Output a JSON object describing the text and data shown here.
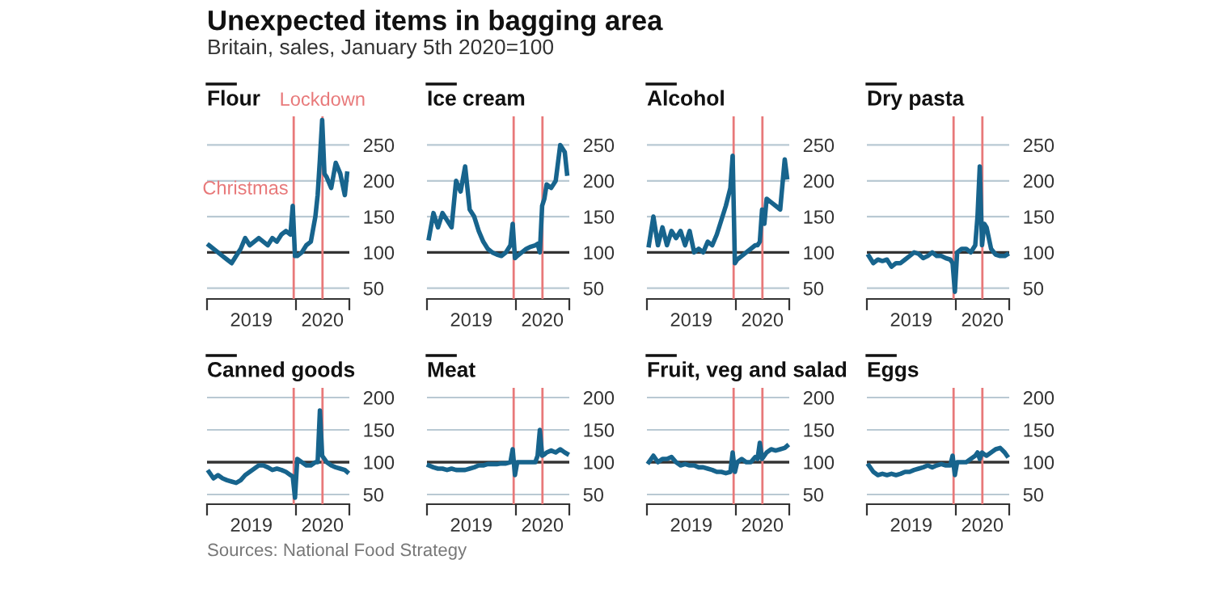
{
  "chart_data": [
    {
      "type": "other",
      "title": "Unexpected items in bagging area",
      "subtitle": "Britain, sales, January 5th 2020=100",
      "annotations": [
        "Sources: National Food Strategy"
      ]
    },
    {
      "type": "line",
      "title": "Flour",
      "x": [
        "2019-04-07",
        "2019-04-21",
        "2019-05-05",
        "2019-05-19",
        "2019-06-02",
        "2019-06-16",
        "2019-06-30",
        "2019-07-14",
        "2019-07-28",
        "2019-08-11",
        "2019-08-25",
        "2019-09-08",
        "2019-09-22",
        "2019-10-06",
        "2019-10-20",
        "2019-11-03",
        "2019-11-17",
        "2019-12-01",
        "2019-12-15",
        "2019-12-22",
        "2019-12-29",
        "2020-01-05",
        "2020-01-19",
        "2020-02-02",
        "2020-02-16",
        "2020-03-01",
        "2020-03-08",
        "2020-03-15",
        "2020-03-22",
        "2020-03-29",
        "2020-04-05",
        "2020-04-19",
        "2020-05-03",
        "2020-05-17",
        "2020-05-31",
        "2020-06-07"
      ],
      "series": [
        {
          "color": "#17648d",
          "values": [
            110,
            105,
            100,
            95,
            90,
            85,
            95,
            105,
            120,
            110,
            115,
            120,
            115,
            110,
            120,
            115,
            125,
            130,
            125,
            165,
            95,
            95,
            100,
            110,
            115,
            150,
            180,
            230,
            285,
            210,
            205,
            190,
            225,
            210,
            180,
            210
          ]
        }
      ],
      "ylim": [
        35,
        290
      ],
      "yticks": [
        50,
        100,
        150,
        200,
        250
      ],
      "xlim": [
        "2019-04-01",
        "2020-06-14"
      ],
      "xticks": [
        {
          "value": "2019-04-01",
          "label": null
        },
        {
          "value": "2019-08-16",
          "label": "2019"
        },
        {
          "value": "2020-01-01",
          "label": null
        },
        {
          "value": "2020-03-23",
          "label": "2020"
        },
        {
          "value": "2020-06-14",
          "label": null
        }
      ],
      "grid": "y",
      "ref_lines": [
        {
          "axis": "y",
          "value": 100,
          "color": "#333333"
        },
        {
          "axis": "x",
          "value": "2019-12-25",
          "label": "Christmas",
          "color": "#e8797a"
        },
        {
          "axis": "x",
          "value": "2020-03-23",
          "label": "Lockdown",
          "color": "#e8797a"
        }
      ]
    },
    {
      "type": "line",
      "title": "Ice cream",
      "x": [
        "2019-04-07",
        "2019-04-21",
        "2019-05-05",
        "2019-05-19",
        "2019-06-02",
        "2019-06-16",
        "2019-06-30",
        "2019-07-14",
        "2019-07-28",
        "2019-08-11",
        "2019-08-25",
        "2019-09-08",
        "2019-09-22",
        "2019-10-06",
        "2019-10-20",
        "2019-11-03",
        "2019-11-17",
        "2019-12-01",
        "2019-12-15",
        "2019-12-22",
        "2019-12-29",
        "2020-01-05",
        "2020-01-19",
        "2020-02-02",
        "2020-02-16",
        "2020-03-01",
        "2020-03-08",
        "2020-03-15",
        "2020-03-22",
        "2020-03-29",
        "2020-04-05",
        "2020-04-19",
        "2020-05-03",
        "2020-05-17",
        "2020-05-31",
        "2020-06-07"
      ],
      "series": [
        {
          "color": "#17648d",
          "values": [
            120,
            155,
            135,
            155,
            145,
            135,
            200,
            185,
            220,
            160,
            150,
            130,
            115,
            105,
            100,
            97,
            95,
            100,
            110,
            140,
            92,
            95,
            100,
            105,
            108,
            110,
            112,
            100,
            165,
            175,
            195,
            190,
            200,
            250,
            240,
            210
          ]
        }
      ],
      "ylim": [
        35,
        290
      ],
      "yticks": [
        50,
        100,
        150,
        200,
        250
      ],
      "xlim": [
        "2019-04-01",
        "2020-06-14"
      ],
      "xticks": [
        {
          "value": "2019-04-01",
          "label": null
        },
        {
          "value": "2019-08-16",
          "label": "2019"
        },
        {
          "value": "2020-01-01",
          "label": null
        },
        {
          "value": "2020-03-23",
          "label": "2020"
        },
        {
          "value": "2020-06-14",
          "label": null
        }
      ],
      "grid": "y",
      "ref_lines": [
        {
          "axis": "y",
          "value": 100,
          "color": "#333333"
        },
        {
          "axis": "x",
          "value": "2019-12-25",
          "color": "#e8797a"
        },
        {
          "axis": "x",
          "value": "2020-03-23",
          "color": "#e8797a"
        }
      ]
    },
    {
      "type": "line",
      "title": "Alcohol",
      "x": [
        "2019-04-07",
        "2019-04-21",
        "2019-05-05",
        "2019-05-19",
        "2019-06-02",
        "2019-06-16",
        "2019-06-30",
        "2019-07-14",
        "2019-07-28",
        "2019-08-11",
        "2019-08-25",
        "2019-09-08",
        "2019-09-22",
        "2019-10-06",
        "2019-10-20",
        "2019-11-03",
        "2019-11-17",
        "2019-12-01",
        "2019-12-15",
        "2019-12-22",
        "2019-12-29",
        "2020-01-05",
        "2020-01-19",
        "2020-02-02",
        "2020-02-16",
        "2020-03-01",
        "2020-03-08",
        "2020-03-15",
        "2020-03-22",
        "2020-03-29",
        "2020-04-05",
        "2020-04-19",
        "2020-05-03",
        "2020-05-17",
        "2020-05-31",
        "2020-06-07"
      ],
      "series": [
        {
          "color": "#17648d",
          "values": [
            110,
            150,
            110,
            135,
            110,
            130,
            120,
            130,
            110,
            130,
            100,
            105,
            100,
            115,
            110,
            125,
            145,
            165,
            190,
            235,
            85,
            90,
            95,
            100,
            105,
            110,
            110,
            115,
            160,
            140,
            175,
            170,
            165,
            160,
            230,
            205
          ]
        }
      ],
      "ylim": [
        35,
        290
      ],
      "yticks": [
        50,
        100,
        150,
        200,
        250
      ],
      "xlim": [
        "2019-04-01",
        "2020-06-14"
      ],
      "xticks": [
        {
          "value": "2019-04-01",
          "label": null
        },
        {
          "value": "2019-08-16",
          "label": "2019"
        },
        {
          "value": "2020-01-01",
          "label": null
        },
        {
          "value": "2020-03-23",
          "label": "2020"
        },
        {
          "value": "2020-06-14",
          "label": null
        }
      ],
      "grid": "y",
      "ref_lines": [
        {
          "axis": "y",
          "value": 100,
          "color": "#333333"
        },
        {
          "axis": "x",
          "value": "2019-12-25",
          "color": "#e8797a"
        },
        {
          "axis": "x",
          "value": "2020-03-23",
          "color": "#e8797a"
        }
      ]
    },
    {
      "type": "line",
      "title": "Dry pasta",
      "x": [
        "2019-04-07",
        "2019-04-21",
        "2019-05-05",
        "2019-05-19",
        "2019-06-02",
        "2019-06-16",
        "2019-06-30",
        "2019-07-14",
        "2019-07-28",
        "2019-08-11",
        "2019-08-25",
        "2019-09-08",
        "2019-09-22",
        "2019-10-06",
        "2019-10-20",
        "2019-11-03",
        "2019-11-17",
        "2019-12-01",
        "2019-12-15",
        "2019-12-22",
        "2019-12-29",
        "2020-01-05",
        "2020-01-19",
        "2020-02-02",
        "2020-02-16",
        "2020-03-01",
        "2020-03-08",
        "2020-03-15",
        "2020-03-22",
        "2020-03-29",
        "2020-04-05",
        "2020-04-19",
        "2020-05-03",
        "2020-05-17",
        "2020-05-31",
        "2020-06-07"
      ],
      "series": [
        {
          "color": "#17648d",
          "values": [
            95,
            85,
            90,
            88,
            90,
            80,
            85,
            85,
            90,
            95,
            100,
            98,
            92,
            95,
            100,
            95,
            95,
            92,
            90,
            85,
            45,
            100,
            105,
            105,
            100,
            110,
            150,
            220,
            110,
            140,
            135,
            105,
            97,
            95,
            95,
            97
          ]
        }
      ],
      "ylim": [
        35,
        290
      ],
      "yticks": [
        50,
        100,
        150,
        200,
        250
      ],
      "xlim": [
        "2019-04-01",
        "2020-06-14"
      ],
      "xticks": [
        {
          "value": "2019-04-01",
          "label": null
        },
        {
          "value": "2019-08-16",
          "label": "2019"
        },
        {
          "value": "2020-01-01",
          "label": null
        },
        {
          "value": "2020-03-23",
          "label": "2020"
        },
        {
          "value": "2020-06-14",
          "label": null
        }
      ],
      "grid": "y",
      "ref_lines": [
        {
          "axis": "y",
          "value": 100,
          "color": "#333333"
        },
        {
          "axis": "x",
          "value": "2019-12-25",
          "color": "#e8797a"
        },
        {
          "axis": "x",
          "value": "2020-03-23",
          "color": "#e8797a"
        }
      ]
    },
    {
      "type": "line",
      "title": "Canned goods",
      "x": [
        "2019-04-07",
        "2019-04-21",
        "2019-05-05",
        "2019-05-19",
        "2019-06-02",
        "2019-06-16",
        "2019-06-30",
        "2019-07-14",
        "2019-07-28",
        "2019-08-11",
        "2019-08-25",
        "2019-09-08",
        "2019-09-22",
        "2019-10-06",
        "2019-10-20",
        "2019-11-03",
        "2019-11-17",
        "2019-12-01",
        "2019-12-15",
        "2019-12-22",
        "2019-12-29",
        "2020-01-05",
        "2020-01-19",
        "2020-02-02",
        "2020-02-16",
        "2020-03-01",
        "2020-03-08",
        "2020-03-15",
        "2020-03-22",
        "2020-03-29",
        "2020-04-05",
        "2020-04-19",
        "2020-05-03",
        "2020-05-17",
        "2020-05-31",
        "2020-06-07"
      ],
      "series": [
        {
          "color": "#17648d",
          "values": [
            85,
            75,
            80,
            75,
            72,
            70,
            68,
            72,
            80,
            85,
            90,
            95,
            95,
            92,
            88,
            90,
            88,
            85,
            80,
            78,
            45,
            105,
            100,
            95,
            95,
            100,
            100,
            180,
            110,
            105,
            100,
            95,
            92,
            90,
            88,
            85
          ]
        }
      ],
      "ylim": [
        35,
        215
      ],
      "yticks": [
        50,
        100,
        150,
        200
      ],
      "xlim": [
        "2019-04-01",
        "2020-06-14"
      ],
      "xticks": [
        {
          "value": "2019-04-01",
          "label": null
        },
        {
          "value": "2019-08-16",
          "label": "2019"
        },
        {
          "value": "2020-01-01",
          "label": null
        },
        {
          "value": "2020-03-23",
          "label": "2020"
        },
        {
          "value": "2020-06-14",
          "label": null
        }
      ],
      "grid": "y",
      "ref_lines": [
        {
          "axis": "y",
          "value": 100,
          "color": "#333333"
        },
        {
          "axis": "x",
          "value": "2019-12-25",
          "color": "#e8797a"
        },
        {
          "axis": "x",
          "value": "2020-03-23",
          "color": "#e8797a"
        }
      ]
    },
    {
      "type": "line",
      "title": "Meat",
      "x": [
        "2019-04-07",
        "2019-04-21",
        "2019-05-05",
        "2019-05-19",
        "2019-06-02",
        "2019-06-16",
        "2019-06-30",
        "2019-07-14",
        "2019-07-28",
        "2019-08-11",
        "2019-08-25",
        "2019-09-08",
        "2019-09-22",
        "2019-10-06",
        "2019-10-20",
        "2019-11-03",
        "2019-11-17",
        "2019-12-01",
        "2019-12-15",
        "2019-12-22",
        "2019-12-29",
        "2020-01-05",
        "2020-01-19",
        "2020-02-02",
        "2020-02-16",
        "2020-03-01",
        "2020-03-08",
        "2020-03-15",
        "2020-03-22",
        "2020-03-29",
        "2020-04-05",
        "2020-04-19",
        "2020-05-03",
        "2020-05-17",
        "2020-05-31",
        "2020-06-07"
      ],
      "series": [
        {
          "color": "#17648d",
          "values": [
            95,
            92,
            90,
            90,
            88,
            90,
            88,
            88,
            88,
            90,
            92,
            95,
            95,
            97,
            97,
            97,
            98,
            98,
            100,
            120,
            80,
            100,
            100,
            100,
            100,
            100,
            110,
            150,
            110,
            112,
            115,
            118,
            115,
            120,
            115,
            113
          ]
        }
      ],
      "ylim": [
        35,
        215
      ],
      "yticks": [
        50,
        100,
        150,
        200
      ],
      "xlim": [
        "2019-04-01",
        "2020-06-14"
      ],
      "xticks": [
        {
          "value": "2019-04-01",
          "label": null
        },
        {
          "value": "2019-08-16",
          "label": "2019"
        },
        {
          "value": "2020-01-01",
          "label": null
        },
        {
          "value": "2020-03-23",
          "label": "2020"
        },
        {
          "value": "2020-06-14",
          "label": null
        }
      ],
      "grid": "y",
      "ref_lines": [
        {
          "axis": "y",
          "value": 100,
          "color": "#333333"
        },
        {
          "axis": "x",
          "value": "2019-12-25",
          "color": "#e8797a"
        },
        {
          "axis": "x",
          "value": "2020-03-23",
          "color": "#e8797a"
        }
      ]
    },
    {
      "type": "line",
      "title": "Fruit, veg and salad",
      "x": [
        "2019-04-07",
        "2019-04-21",
        "2019-05-05",
        "2019-05-19",
        "2019-06-02",
        "2019-06-16",
        "2019-06-30",
        "2019-07-14",
        "2019-07-28",
        "2019-08-11",
        "2019-08-25",
        "2019-09-08",
        "2019-09-22",
        "2019-10-06",
        "2019-10-20",
        "2019-11-03",
        "2019-11-17",
        "2019-12-01",
        "2019-12-15",
        "2019-12-22",
        "2019-12-29",
        "2020-01-05",
        "2020-01-19",
        "2020-02-02",
        "2020-02-16",
        "2020-03-01",
        "2020-03-08",
        "2020-03-15",
        "2020-03-22",
        "2020-03-29",
        "2020-04-05",
        "2020-04-19",
        "2020-05-03",
        "2020-05-17",
        "2020-05-31",
        "2020-06-07"
      ],
      "series": [
        {
          "color": "#17648d",
          "values": [
            100,
            110,
            100,
            105,
            105,
            108,
            100,
            95,
            97,
            95,
            95,
            92,
            92,
            90,
            88,
            85,
            85,
            83,
            85,
            115,
            85,
            100,
            105,
            100,
            100,
            108,
            105,
            130,
            105,
            110,
            115,
            120,
            118,
            120,
            122,
            125
          ]
        }
      ],
      "ylim": [
        35,
        215
      ],
      "yticks": [
        50,
        100,
        150,
        200
      ],
      "xlim": [
        "2019-04-01",
        "2020-06-14"
      ],
      "xticks": [
        {
          "value": "2019-04-01",
          "label": null
        },
        {
          "value": "2019-08-16",
          "label": "2019"
        },
        {
          "value": "2020-01-01",
          "label": null
        },
        {
          "value": "2020-03-23",
          "label": "2020"
        },
        {
          "value": "2020-06-14",
          "label": null
        }
      ],
      "grid": "y",
      "ref_lines": [
        {
          "axis": "y",
          "value": 100,
          "color": "#333333"
        },
        {
          "axis": "x",
          "value": "2019-12-25",
          "color": "#e8797a"
        },
        {
          "axis": "x",
          "value": "2020-03-23",
          "color": "#e8797a"
        }
      ]
    },
    {
      "type": "line",
      "title": "Eggs",
      "x": [
        "2019-04-07",
        "2019-04-21",
        "2019-05-05",
        "2019-05-19",
        "2019-06-02",
        "2019-06-16",
        "2019-06-30",
        "2019-07-14",
        "2019-07-28",
        "2019-08-11",
        "2019-08-25",
        "2019-09-08",
        "2019-09-22",
        "2019-10-06",
        "2019-10-20",
        "2019-11-03",
        "2019-11-17",
        "2019-12-01",
        "2019-12-15",
        "2019-12-22",
        "2019-12-29",
        "2020-01-05",
        "2020-01-19",
        "2020-02-02",
        "2020-02-16",
        "2020-03-01",
        "2020-03-08",
        "2020-03-15",
        "2020-03-22",
        "2020-03-29",
        "2020-04-05",
        "2020-04-19",
        "2020-05-03",
        "2020-05-17",
        "2020-05-31",
        "2020-06-07"
      ],
      "series": [
        {
          "color": "#17648d",
          "values": [
            95,
            85,
            80,
            82,
            80,
            82,
            80,
            82,
            85,
            85,
            88,
            90,
            92,
            95,
            92,
            95,
            97,
            95,
            95,
            110,
            80,
            100,
            100,
            100,
            105,
            110,
            115,
            105,
            115,
            112,
            110,
            115,
            120,
            122,
            115,
            110
          ]
        }
      ],
      "ylim": [
        35,
        215
      ],
      "yticks": [
        50,
        100,
        150,
        200
      ],
      "xlim": [
        "2019-04-01",
        "2020-06-14"
      ],
      "xticks": [
        {
          "value": "2019-04-01",
          "label": null
        },
        {
          "value": "2019-08-16",
          "label": "2019"
        },
        {
          "value": "2020-01-01",
          "label": null
        },
        {
          "value": "2020-03-23",
          "label": "2020"
        },
        {
          "value": "2020-06-14",
          "label": null
        }
      ],
      "grid": "y",
      "ref_lines": [
        {
          "axis": "y",
          "value": 100,
          "color": "#333333"
        },
        {
          "axis": "x",
          "value": "2019-12-25",
          "color": "#e8797a"
        },
        {
          "axis": "x",
          "value": "2020-03-23",
          "color": "#e8797a"
        }
      ]
    }
  ]
}
